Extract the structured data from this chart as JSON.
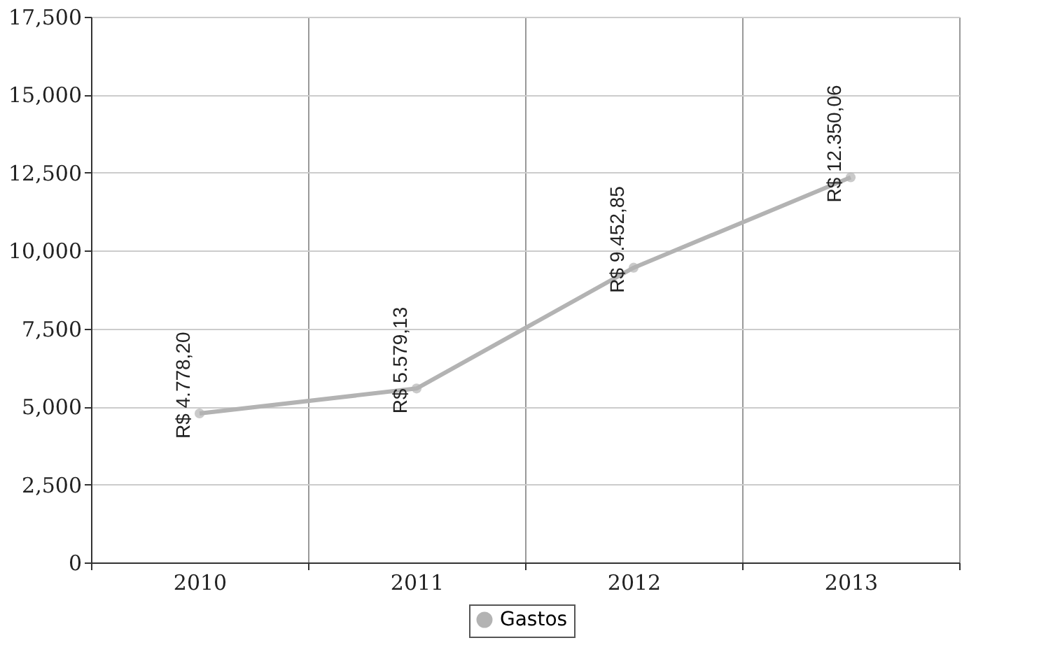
{
  "chart_data": {
    "type": "line",
    "categories": [
      "2010",
      "2011",
      "2012",
      "2013"
    ],
    "series": [
      {
        "name": "Gastos",
        "color": "#b3b3b3",
        "values": [
          4778.2,
          5579.13,
          9452.85,
          12350.06
        ],
        "value_labels": [
          "R$ 4.778,20",
          "R$ 5.579,13",
          "R$ 9.452,85",
          "R$ 12.350,06"
        ]
      }
    ],
    "ylim": [
      0,
      17500
    ],
    "yticks": [
      0,
      {
        "value": 2500,
        "label": "2,500"
      },
      {
        "value": 5000,
        "label": "5,000"
      },
      {
        "value": 7500,
        "label": "7,500"
      },
      {
        "value": 10000,
        "label": "10,000"
      },
      {
        "value": 12500,
        "label": "12,500"
      },
      {
        "value": 15000,
        "label": "15,000"
      },
      {
        "value": 17500,
        "label": "17,500"
      }
    ],
    "grid": true,
    "legend": "bottom",
    "marker": "circle",
    "line_style": "solid"
  }
}
